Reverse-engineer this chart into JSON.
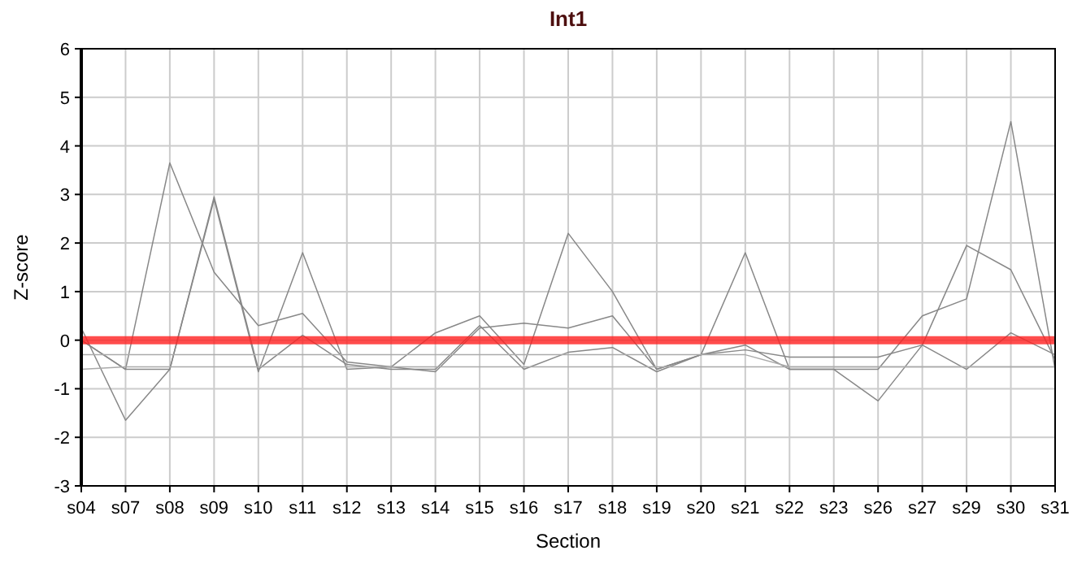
{
  "chart_data": {
    "type": "line",
    "title": "Int1",
    "xlabel": "Section",
    "ylabel": "Z-score",
    "categories": [
      "s04",
      "s07",
      "s08",
      "s09",
      "s10",
      "s11",
      "s12",
      "s13",
      "s14",
      "s15",
      "s16",
      "s17",
      "s18",
      "s19",
      "s20",
      "s21",
      "s22",
      "s23",
      "s26",
      "s27",
      "s29",
      "s30",
      "s31"
    ],
    "series": [
      {
        "color": "#888888",
        "values": [
          0.25,
          -1.65,
          -0.6,
          2.95,
          -0.6,
          0.1,
          -0.5,
          -0.6,
          -0.6,
          0.3,
          -0.6,
          -0.25,
          -0.15,
          -0.65,
          -0.3,
          -0.1,
          -0.6,
          -0.6,
          -1.25,
          -0.1,
          -0.6,
          0.15,
          -0.3
        ]
      },
      {
        "color": "#888888",
        "values": [
          0,
          -0.6,
          3.65,
          1.4,
          0.3,
          0.55,
          -0.45,
          -0.55,
          0.15,
          0.5,
          -0.5,
          2.2,
          1.0,
          -0.6,
          -0.3,
          1.8,
          -0.6,
          -0.6,
          -0.6,
          0.5,
          0.85,
          4.5,
          -0.6
        ]
      },
      {
        "color": "#888888",
        "values": [
          0,
          -0.6,
          -0.6,
          2.9,
          -0.65,
          1.8,
          -0.6,
          -0.55,
          -0.65,
          0.25,
          0.35,
          0.25,
          0.5,
          -0.6,
          -0.3,
          -0.2,
          -0.35,
          -0.35,
          -0.35,
          -0.1,
          1.95,
          1.45,
          -0.4
        ]
      },
      {
        "color": "#aaaaaa",
        "values": [
          -0.3,
          -0.3,
          -0.3,
          -0.3,
          -0.3,
          -0.3,
          -0.3,
          -0.3,
          -0.3,
          -0.3,
          -0.3,
          -0.3,
          -0.3,
          -0.3,
          -0.3,
          -0.3,
          -0.55,
          -0.55,
          -0.55,
          -0.55,
          -0.55,
          -0.55,
          -0.55
        ]
      },
      {
        "color": "#aaaaaa",
        "values": [
          -0.6,
          -0.55,
          -0.55,
          -0.55,
          -0.55,
          -0.55,
          -0.55,
          -0.55,
          -0.55,
          -0.55,
          -0.55,
          -0.55,
          -0.55,
          -0.55,
          -0.55,
          -0.55,
          -0.55,
          -0.55,
          -0.55,
          -0.55,
          -0.55,
          -0.55,
          -0.55
        ]
      }
    ],
    "ylim": [
      -3,
      6
    ],
    "yticks": [
      -3,
      -2,
      -1,
      0,
      1,
      2,
      3,
      4,
      5,
      6
    ],
    "grid": true,
    "marker": "none",
    "line_style": "solid",
    "ref_lines": [
      {
        "axis": "y",
        "value": 0,
        "color": "#ff2020"
      }
    ]
  }
}
